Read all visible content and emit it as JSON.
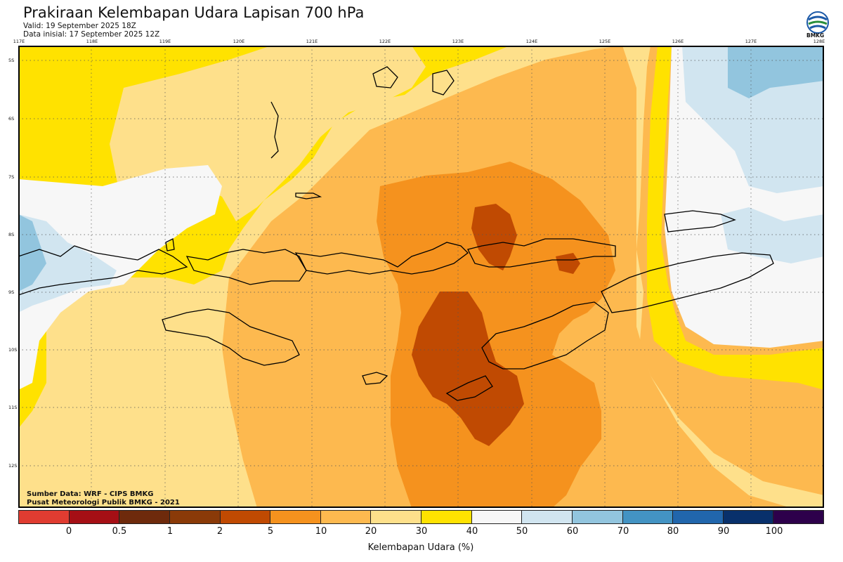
{
  "header": {
    "title": "Prakiraan Kelembapan Udara Lapisan 700 hPa",
    "valid": "Valid: 19 September 2025 18Z",
    "initial": "Data inisial: 17 September 2025 12Z",
    "logo_text": "BMKG"
  },
  "axes": {
    "lon_labels": [
      "117E",
      "118E",
      "119E",
      "120E",
      "121E",
      "122E",
      "123E",
      "124E",
      "125E",
      "126E",
      "127E",
      "128E"
    ],
    "lat_labels": [
      "5S",
      "6S",
      "7S",
      "8S",
      "9S",
      "10S",
      "11S",
      "12S"
    ]
  },
  "credits": {
    "source": "Sumber Data: WRF - CIPS BMKG",
    "publisher": "Pusat Meteorologi Publik BMKG - 2021"
  },
  "legend": {
    "title": "Kelembapan Udara (%)",
    "labels": [
      "0",
      "0.5",
      "1",
      "2",
      "5",
      "10",
      "20",
      "30",
      "40",
      "50",
      "60",
      "70",
      "80",
      "90",
      "100"
    ],
    "colors": [
      "#e03c31",
      "#a50f15",
      "#6e2a0c",
      "#8a3a08",
      "#c04a02",
      "#f5921e",
      "#fdb94f",
      "#fee08b",
      "#ffe200",
      "#f7f7f7",
      "#d1e5f0",
      "#92c5de",
      "#4393c3",
      "#2166ac",
      "#08306b",
      "#2d004b"
    ]
  },
  "map_colors": {
    "c10": "#c04a02",
    "c20": "#f5921e",
    "c30": "#fdb94f",
    "c40": "#fee08b",
    "c50": "#ffe200",
    "c60": "#f7f7f7",
    "c70": "#d1e5f0",
    "c80": "#92c5de",
    "coast": "#000000"
  }
}
